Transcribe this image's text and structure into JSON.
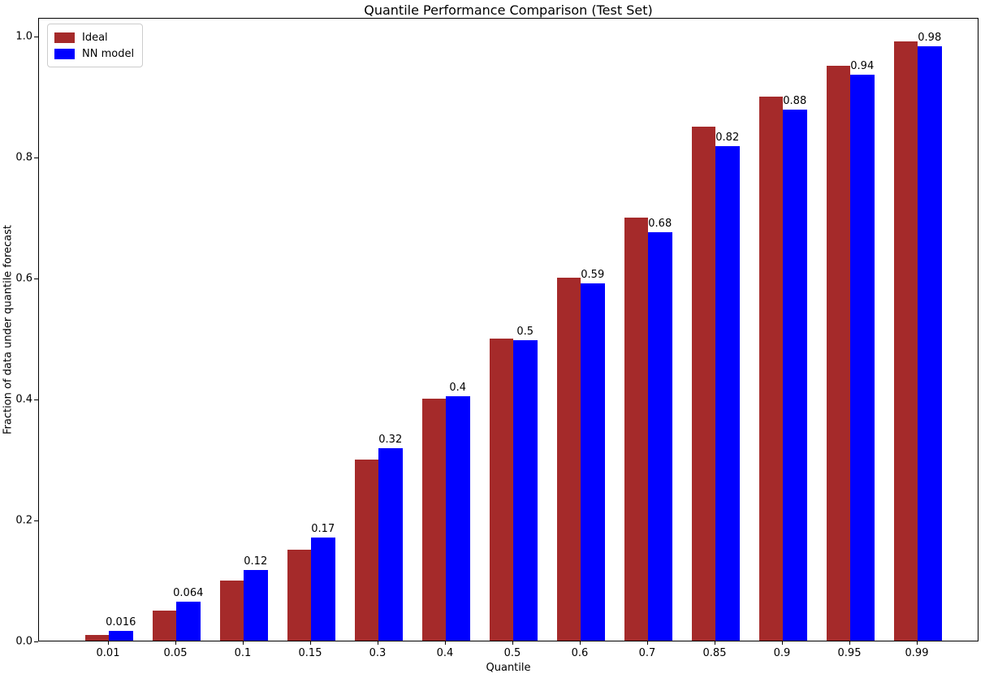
{
  "chart_data": {
    "type": "bar",
    "title": "Quantile Performance Comparison (Test Set)",
    "xlabel": "Quantile",
    "ylabel": "Fraction of data under quantile forecast",
    "categories": [
      "0.01",
      "0.05",
      "0.1",
      "0.15",
      "0.3",
      "0.4",
      "0.5",
      "0.6",
      "0.7",
      "0.85",
      "0.9",
      "0.95",
      "0.99"
    ],
    "series": [
      {
        "name": "Ideal",
        "color": "#a52a2a",
        "values": [
          0.01,
          0.05,
          0.1,
          0.15,
          0.3,
          0.4,
          0.5,
          0.6,
          0.7,
          0.85,
          0.9,
          0.95,
          0.99
        ]
      },
      {
        "name": "NN model",
        "color": "#0000ff",
        "values": [
          0.016,
          0.064,
          0.117,
          0.171,
          0.318,
          0.404,
          0.497,
          0.591,
          0.675,
          0.818,
          0.878,
          0.936,
          0.983
        ],
        "bar_labels": [
          "0.016",
          "0.064",
          "0.12",
          "0.17",
          "0.32",
          "0.4",
          "0.5",
          "0.59",
          "0.68",
          "0.82",
          "0.88",
          "0.94",
          "0.98"
        ]
      }
    ],
    "yticks": [
      "0.0",
      "0.2",
      "0.4",
      "0.6",
      "0.8",
      "1.0"
    ],
    "ytick_values": [
      0.0,
      0.2,
      0.4,
      0.6,
      0.8,
      1.0
    ],
    "ylim": [
      0,
      1.031
    ],
    "grid": false,
    "legend_position": "upper left",
    "axis_color": "#000000",
    "background_color": "#ffffff"
  }
}
